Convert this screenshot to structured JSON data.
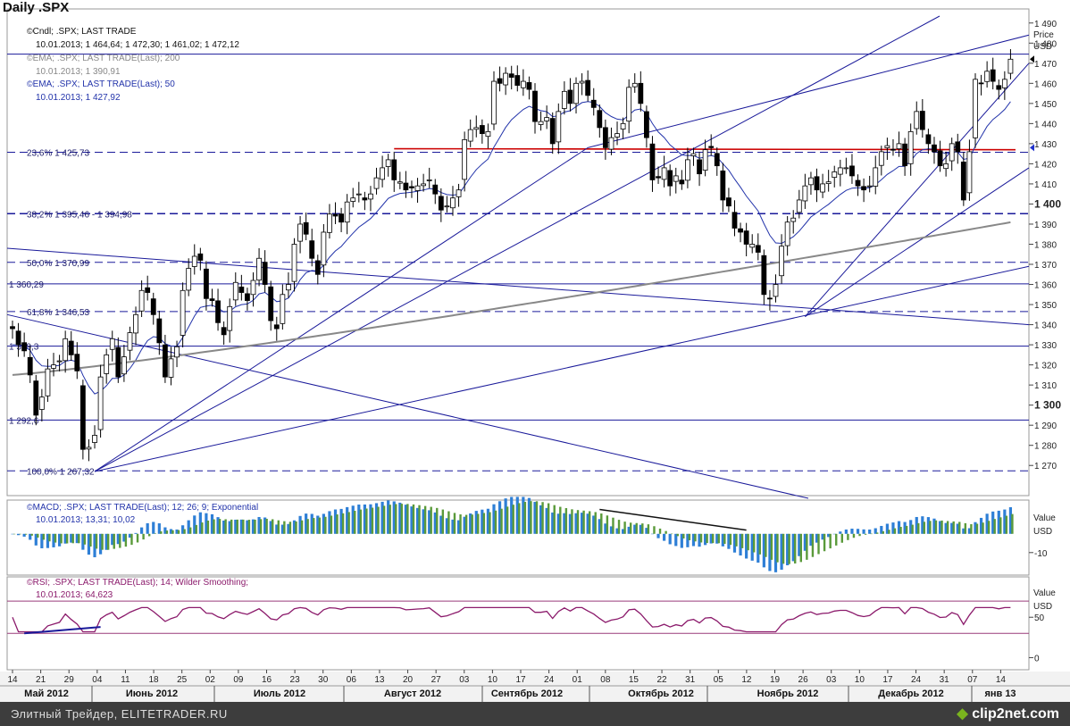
{
  "title": "Daily .SPX",
  "legend": {
    "cndl_label": "Cndl; .SPX; LAST TRADE",
    "cndl_values": "10.01.2013; 1 464,64; 1 472,30; 1 461,02; 1 472,12",
    "ema200_label": "EMA; .SPX; LAST TRADE(Last); 200",
    "ema200_values": "10.01.2013; 1 390,91",
    "ema50_label": "EMA; .SPX; LAST TRADE(Last); 50",
    "ema50_values": "10.01.2013; 1 427,92",
    "macd_label": "MACD; .SPX; LAST TRADE(Last); 12; 26; 9; Exponential",
    "macd_values": "10.01.2013; 13,31; 10,02",
    "rsi_label": "RSI; .SPX; LAST TRADE(Last); 14; Wilder Smoothing;",
    "rsi_values": "10.01.2013; 64,623"
  },
  "fib_labels": [
    "23,6%  1 425,73",
    "38,2%  1 395,46 - 1 394,98",
    "50,0%  1 370,99",
    "61,8%  1 346,53",
    "100,0% 1 267,32"
  ],
  "level_labels": [
    "1 360,29",
    "1 329,3",
    "1 292,6"
  ],
  "footer": {
    "text": "Элитный Трейдер, ELITETRADER.RU",
    "logo": "clip2net.com"
  },
  "colors": {
    "bull": "#ffffff",
    "bear": "#000000",
    "ema50": "#2233aa",
    "ema200": "#888888",
    "macd_up": "#2e7fd6",
    "macd_dn": "#5a9a3a",
    "rsi": "#8b1a6b",
    "channel": "#1a1a9a",
    "red": "#cc0000"
  },
  "chart_data": [
    {
      "type": "candlestick",
      "title": "Daily .SPX",
      "ylabel": "Price USD",
      "ylim": [
        1255,
        1497
      ],
      "yticks": [
        1270,
        1280,
        1290,
        1300,
        1310,
        1320,
        1330,
        1340,
        1350,
        1360,
        1370,
        1380,
        1390,
        1400,
        1410,
        1420,
        1430,
        1440,
        1450,
        1460,
        1470,
        1480,
        1490
      ],
      "bold_ticks": [
        1300,
        1400
      ],
      "ytick_labels": [
        "1 270",
        "1 280",
        "1 290",
        "1 300",
        "1 310",
        "1 320",
        "1 330",
        "1 340",
        "1 350",
        "1 360",
        "1 370",
        "1 380",
        "1 390",
        "1 400",
        "1 410",
        "1 420",
        "1 430",
        "1 440",
        "1 450",
        "1 460",
        "1 470",
        "1 480",
        "1 490"
      ],
      "x_day_labels": [
        "14",
        "21",
        "29",
        "04",
        "11",
        "18",
        "25",
        "02",
        "09",
        "16",
        "23",
        "30",
        "06",
        "13",
        "20",
        "27",
        "03",
        "10",
        "17",
        "24",
        "01",
        "08",
        "15",
        "22",
        "31",
        "05",
        "12",
        "19",
        "26",
        "03",
        "10",
        "17",
        "24",
        "31",
        "07",
        "14"
      ],
      "x_month_labels": [
        "Май 2012",
        "Июнь 2012",
        "Июль 2012",
        "Август 2012",
        "Сентябрь 2012",
        "Октябрь 2012",
        "Ноябрь 2012",
        "Декабрь 2012",
        "янв 13"
      ],
      "close": [
        1338,
        1330,
        1327,
        1315,
        1295,
        1304,
        1318,
        1320,
        1322,
        1333,
        1325,
        1317,
        1278,
        1279,
        1285,
        1314,
        1325,
        1333,
        1314,
        1324,
        1336,
        1345,
        1357,
        1356,
        1345,
        1331,
        1314,
        1323,
        1329,
        1357,
        1368,
        1374,
        1372,
        1353,
        1352,
        1341,
        1335,
        1349,
        1361,
        1356,
        1352,
        1362,
        1373,
        1360,
        1342,
        1338,
        1355,
        1360,
        1380,
        1390,
        1385,
        1373,
        1365,
        1386,
        1395,
        1394,
        1391,
        1401,
        1403,
        1405,
        1402,
        1405,
        1413,
        1418,
        1422,
        1412,
        1411,
        1407,
        1408,
        1409,
        1410,
        1412,
        1405,
        1397,
        1399,
        1403,
        1407,
        1432,
        1437,
        1438,
        1435,
        1436,
        1461,
        1460,
        1465,
        1463,
        1459,
        1461,
        1457,
        1441,
        1441,
        1443,
        1430,
        1446,
        1456,
        1450,
        1460,
        1461,
        1454,
        1448,
        1438,
        1428,
        1433,
        1435,
        1440,
        1458,
        1460,
        1450,
        1433,
        1412,
        1413,
        1418,
        1409,
        1414,
        1410,
        1422,
        1425,
        1415,
        1427,
        1428,
        1419,
        1402,
        1399,
        1388,
        1386,
        1380,
        1380,
        1376,
        1355,
        1353,
        1360,
        1379,
        1391,
        1393,
        1402,
        1409,
        1413,
        1407,
        1410,
        1411,
        1416,
        1418,
        1418,
        1414,
        1409,
        1407,
        1409,
        1418,
        1426,
        1429,
        1427,
        1430,
        1419,
        1436,
        1446,
        1437,
        1430,
        1426,
        1419,
        1420,
        1430,
        1426,
        1402,
        1426,
        1462,
        1460,
        1466,
        1461,
        1457,
        1462,
        1472
      ],
      "ema50_end": 1427.92,
      "ema200_end": 1390.91
    },
    {
      "type": "bar",
      "title": "MACD",
      "ylabel": "Value USD",
      "yticks": [
        -10
      ],
      "ylim": [
        -22,
        18
      ],
      "end_values": [
        13.31,
        10.02
      ]
    },
    {
      "type": "line",
      "title": "RSI",
      "ylabel": "Value USD",
      "yticks": [
        50,
        0
      ],
      "ylim": [
        -15,
        100
      ],
      "end_value": 64.623
    }
  ]
}
